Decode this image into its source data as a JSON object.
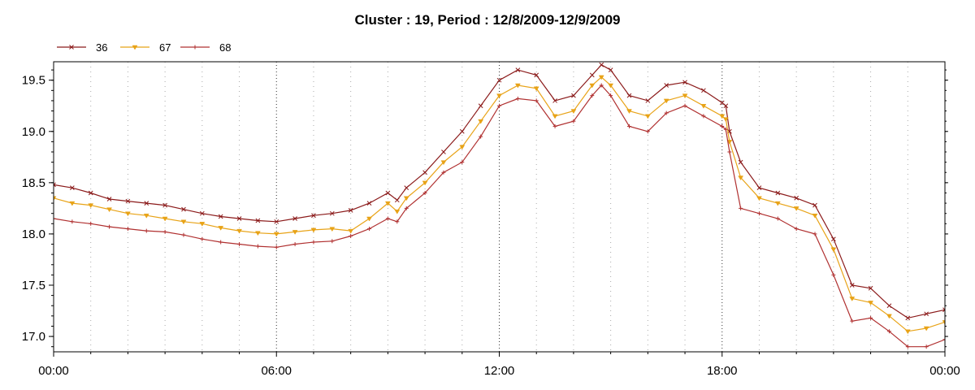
{
  "chart_data": {
    "type": "line",
    "title": "Cluster : 19, Period : 12/8/2009-12/9/2009",
    "xlabel": "",
    "ylabel": "",
    "x_ticks": [
      "00:00",
      "06:00",
      "12:00",
      "18:00",
      "00:00"
    ],
    "y_ticks": [
      "17.0",
      "17.5",
      "18.0",
      "18.5",
      "19.0",
      "19.5"
    ],
    "xlim": [
      0,
      24
    ],
    "ylim": [
      16.85,
      19.68
    ],
    "grid": true,
    "legend_position": "top-left",
    "series": [
      {
        "name": "36",
        "color": "#8b1a1a",
        "marker": "x",
        "x": [
          0,
          0.5,
          1,
          1.5,
          2,
          2.5,
          3,
          3.5,
          4,
          4.5,
          5,
          5.5,
          6,
          6.5,
          7,
          7.5,
          8,
          8.5,
          9,
          9.25,
          9.5,
          10,
          10.5,
          11,
          11.5,
          12,
          12.5,
          13,
          13.5,
          14,
          14.5,
          14.75,
          15,
          15.5,
          16,
          16.5,
          17,
          17.5,
          18,
          18.1,
          18.2,
          18.5,
          19,
          19.5,
          20,
          20.5,
          21,
          21.5,
          22,
          22.5,
          23,
          23.5,
          24
        ],
        "y": [
          18.48,
          18.45,
          18.4,
          18.34,
          18.32,
          18.3,
          18.28,
          18.24,
          18.2,
          18.17,
          18.15,
          18.13,
          18.12,
          18.15,
          18.18,
          18.2,
          18.23,
          18.3,
          18.4,
          18.33,
          18.45,
          18.6,
          18.8,
          19.0,
          19.25,
          19.5,
          19.6,
          19.55,
          19.3,
          19.35,
          19.55,
          19.65,
          19.6,
          19.35,
          19.3,
          19.45,
          19.48,
          19.4,
          19.28,
          19.25,
          19.0,
          18.7,
          18.45,
          18.4,
          18.35,
          18.28,
          17.95,
          17.5,
          17.47,
          17.3,
          17.18,
          17.22,
          17.26
        ]
      },
      {
        "name": "67",
        "color": "#e8a317",
        "marker": "triangle-down",
        "x": [
          0,
          0.5,
          1,
          1.5,
          2,
          2.5,
          3,
          3.5,
          4,
          4.5,
          5,
          5.5,
          6,
          6.5,
          7,
          7.5,
          8,
          8.5,
          9,
          9.25,
          9.5,
          10,
          10.5,
          11,
          11.5,
          12,
          12.5,
          13,
          13.5,
          14,
          14.5,
          14.75,
          15,
          15.5,
          16,
          16.5,
          17,
          17.5,
          18,
          18.1,
          18.2,
          18.5,
          19,
          19.5,
          20,
          20.5,
          21,
          21.5,
          22,
          22.5,
          23,
          23.5,
          24
        ],
        "y": [
          18.35,
          18.3,
          18.28,
          18.24,
          18.2,
          18.18,
          18.15,
          18.12,
          18.1,
          18.06,
          18.03,
          18.01,
          18.0,
          18.02,
          18.04,
          18.05,
          18.03,
          18.15,
          18.3,
          18.22,
          18.35,
          18.5,
          18.7,
          18.85,
          19.1,
          19.35,
          19.45,
          19.42,
          19.15,
          19.2,
          19.45,
          19.53,
          19.45,
          19.2,
          19.15,
          19.3,
          19.35,
          19.25,
          19.15,
          19.12,
          18.9,
          18.55,
          18.35,
          18.3,
          18.25,
          18.18,
          17.85,
          17.37,
          17.33,
          17.2,
          17.05,
          17.08,
          17.14
        ]
      },
      {
        "name": "68",
        "color": "#b03030",
        "marker": "plus",
        "x": [
          0,
          0.5,
          1,
          1.5,
          2,
          2.5,
          3,
          3.5,
          4,
          4.5,
          5,
          5.5,
          6,
          6.5,
          7,
          7.5,
          8,
          8.5,
          9,
          9.25,
          9.5,
          10,
          10.5,
          11,
          11.5,
          12,
          12.5,
          13,
          13.5,
          14,
          14.5,
          14.75,
          15,
          15.5,
          16,
          16.5,
          17,
          17.5,
          18,
          18.1,
          18.2,
          18.5,
          19,
          19.5,
          20,
          20.5,
          21,
          21.5,
          22,
          22.5,
          23,
          23.5,
          24
        ],
        "y": [
          18.15,
          18.12,
          18.1,
          18.07,
          18.05,
          18.03,
          18.02,
          17.99,
          17.95,
          17.92,
          17.9,
          17.88,
          17.87,
          17.9,
          17.92,
          17.93,
          17.98,
          18.05,
          18.15,
          18.12,
          18.25,
          18.4,
          18.6,
          18.7,
          18.95,
          19.25,
          19.32,
          19.3,
          19.05,
          19.1,
          19.35,
          19.45,
          19.35,
          19.05,
          19.0,
          19.18,
          19.25,
          19.15,
          19.05,
          19.02,
          18.8,
          18.25,
          18.2,
          18.15,
          18.05,
          18.0,
          17.6,
          17.15,
          17.18,
          17.05,
          16.9,
          16.9,
          16.97
        ]
      }
    ]
  }
}
